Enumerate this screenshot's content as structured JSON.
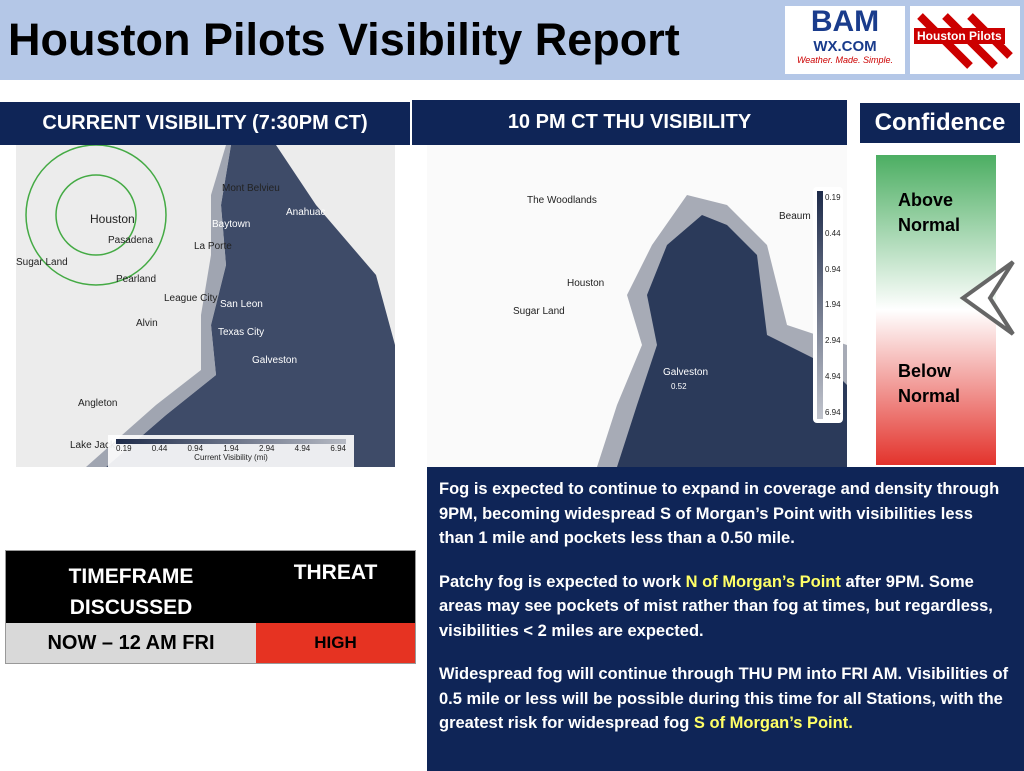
{
  "header": {
    "title": "Houston Pilots Visibility Report",
    "logo_bam": "BAM",
    "logo_wx": "WX.COM",
    "logo_tagline": "Weather. Made. Simple.",
    "logo_pilots": "Houston Pilots"
  },
  "current_map": {
    "title": "CURRENT VISIBILITY (7:30PM CT)",
    "labels": [
      "Mont Belvieu",
      "Houston",
      "Baytown",
      "Anahuac",
      "Pasadena",
      "La Porte",
      "Sugar Land",
      "Pearland",
      "League City",
      "San Leon",
      "Alvin",
      "Texas City",
      "Galveston",
      "Angleton",
      "Lake Jack"
    ],
    "legend_ticks": [
      "0.19",
      "0.44",
      "0.94",
      "1.94",
      "2.94",
      "4.94",
      "6.94"
    ],
    "legend_caption": "Current Visibility (mi)"
  },
  "forecast_map": {
    "title": "10 PM CT THU VISIBILITY",
    "labels": [
      "The Woodlands",
      "Beaum",
      "Houston",
      "Sugar Land",
      "Galveston",
      "0.52"
    ],
    "legend_ticks": [
      "0.19",
      "0.44",
      "0.94",
      "1.94",
      "2.94",
      "4.94",
      "6.94"
    ]
  },
  "confidence": {
    "title": "Confidence",
    "above": "Above Normal",
    "below": "Below Normal"
  },
  "table": {
    "headers": [
      "TIMEFRAME DISCUSSED",
      "THREAT"
    ],
    "rows": [
      [
        "NOW – 12 AM FRI",
        "HIGH"
      ]
    ]
  },
  "discussion": {
    "paragraphs": [
      [
        {
          "text": "Fog is expected to continue to expand in coverage and density through 9PM, becoming widespread S of Morgan’s Point with visibilities less than 1 mile and pockets less than a 0.50 mile."
        }
      ],
      [
        {
          "text": "Patchy fog is expected to work "
        },
        {
          "text": "N of Morgan’s Point",
          "highlight": true
        },
        {
          "text": " after 9PM. Some areas may see pockets of mist rather than fog at times, but regardless, visibilities < 2 miles are expected."
        }
      ],
      [
        {
          "text": "Widespread fog will continue through THU PM into FRI AM. Visibilities of 0.5 mile or less will be possible during this time for all Stations, with the greatest risk for widespread fog "
        },
        {
          "text": "S of Morgan’s Point.",
          "highlight": true
        }
      ]
    ]
  }
}
